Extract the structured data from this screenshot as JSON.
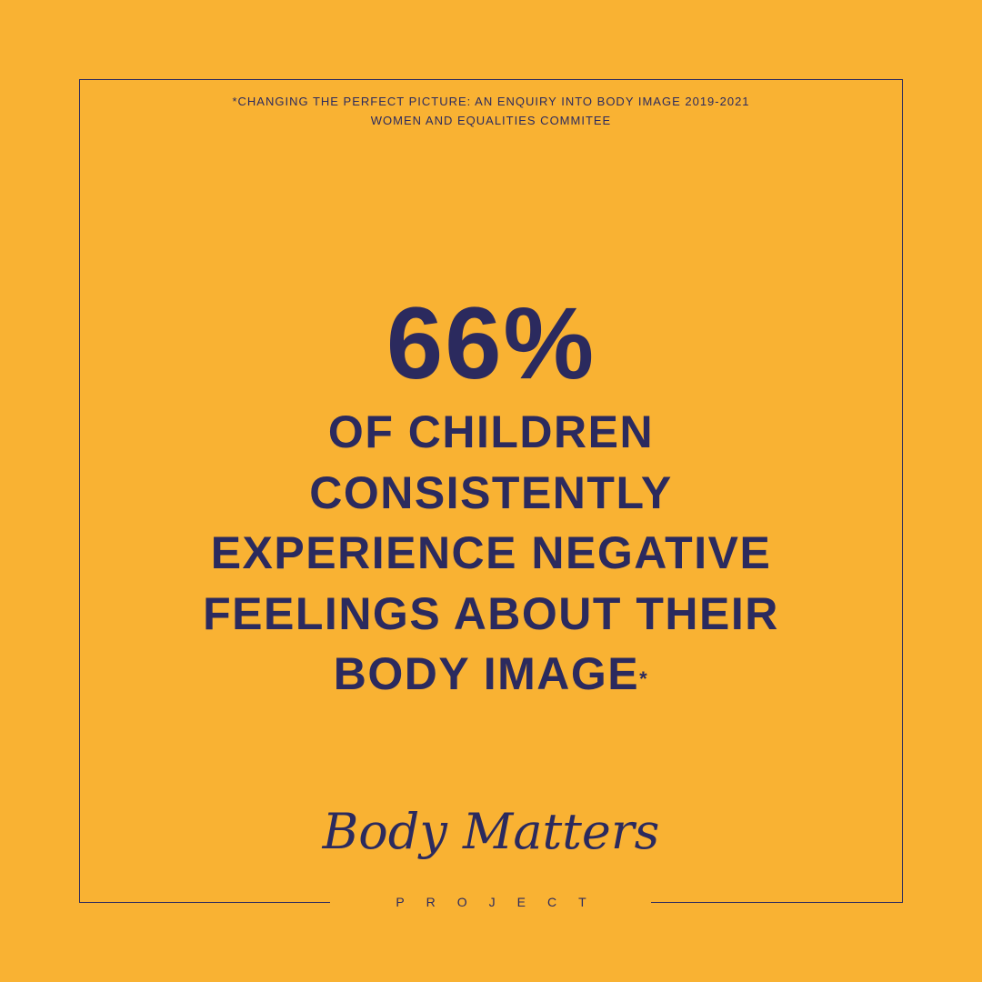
{
  "footnote": [
    "*CHANGING THE PERFECT PICTURE: AN ENQUIRY INTO BODY IMAGE 2019-2021",
    "WOMEN AND EQUALITIES COMMITEE"
  ],
  "stat": "66%",
  "statement": {
    "lines": [
      "OF CHILDREN",
      "CONSISTENTLY",
      "EXPERIENCE NEGATIVE",
      "FEELINGS ABOUT THEIR",
      "BODY IMAGE"
    ],
    "footnote_mark": "*"
  },
  "logo": {
    "name": "Body Matters",
    "subtitle": "PROJECT"
  }
}
